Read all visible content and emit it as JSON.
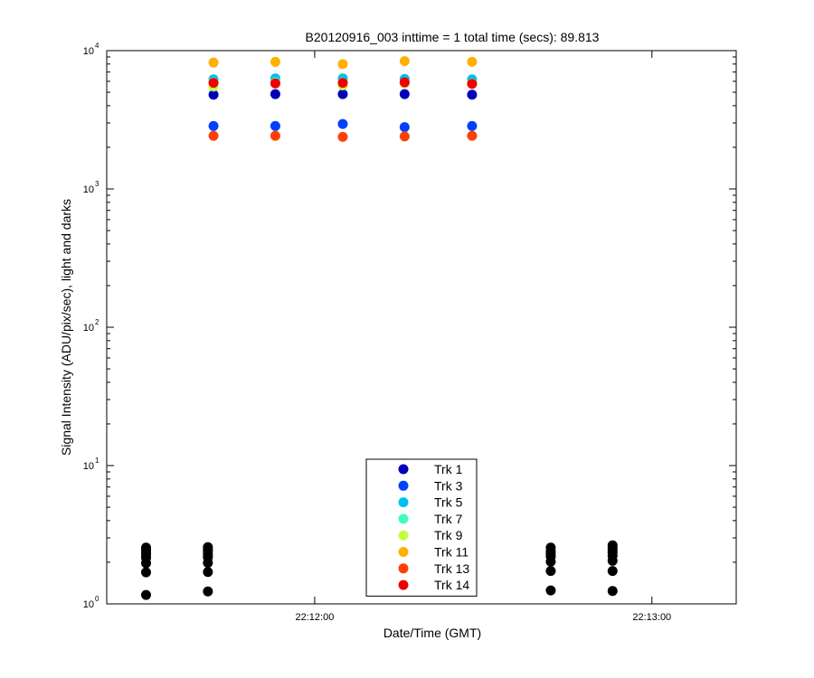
{
  "chart_data": {
    "type": "scatter",
    "title": "B20120916_003 inttime = 1 total time (secs): 89.813",
    "xlabel": "Date/Time (GMT)",
    "ylabel": "Signal Intensity (ADU/pix/sec), light and darks",
    "y_scale": "log",
    "ylim": [
      1,
      10000
    ],
    "y_ticks": [
      {
        "value": 1,
        "base": "10",
        "exp": "0"
      },
      {
        "value": 10,
        "base": "10",
        "exp": "1"
      },
      {
        "value": 100,
        "base": "10",
        "exp": "2"
      },
      {
        "value": 1000,
        "base": "10",
        "exp": "3"
      },
      {
        "value": 10000,
        "base": "10",
        "exp": "4"
      }
    ],
    "xlim": [
      "22:11:23",
      "22:13:15"
    ],
    "x_ticks": [
      {
        "value": "22:12:00",
        "label": "22:12:00"
      },
      {
        "value": "22:13:00",
        "label": "22:13:00"
      }
    ],
    "grid": false,
    "legend_position": "bottom-center",
    "series": [
      {
        "name": "Trk 1",
        "color": "#0000bb",
        "points": [
          [
            "22:11:42",
            4800
          ],
          [
            "22:11:53",
            4850
          ],
          [
            "22:12:05",
            4850
          ],
          [
            "22:12:16",
            4850
          ],
          [
            "22:12:28",
            4800
          ]
        ]
      },
      {
        "name": "Trk 3",
        "color": "#0040ff",
        "points": [
          [
            "22:11:42",
            2850
          ],
          [
            "22:11:53",
            2850
          ],
          [
            "22:12:05",
            2950
          ],
          [
            "22:12:16",
            2800
          ],
          [
            "22:12:28",
            2850
          ]
        ]
      },
      {
        "name": "Trk 5",
        "color": "#00c0f0",
        "points": [
          [
            "22:11:42",
            6200
          ],
          [
            "22:11:53",
            6300
          ],
          [
            "22:12:05",
            6300
          ],
          [
            "22:12:16",
            6250
          ],
          [
            "22:12:28",
            6200
          ]
        ]
      },
      {
        "name": "Trk 7",
        "color": "#40ffc0",
        "points": [
          [
            "22:11:42",
            5900
          ],
          [
            "22:11:53",
            5900
          ],
          [
            "22:12:05",
            5900
          ],
          [
            "22:12:16",
            5900
          ],
          [
            "22:12:28",
            5800
          ]
        ]
      },
      {
        "name": "Trk 9",
        "color": "#c0ff40",
        "points": [
          [
            "22:11:42",
            5500
          ],
          [
            "22:11:53",
            5800
          ],
          [
            "22:12:05",
            5600
          ],
          [
            "22:12:16",
            5800
          ],
          [
            "22:12:28",
            5750
          ]
        ]
      },
      {
        "name": "Trk 11",
        "color": "#ffb000",
        "points": [
          [
            "22:11:42",
            8200
          ],
          [
            "22:11:53",
            8300
          ],
          [
            "22:12:05",
            8000
          ],
          [
            "22:12:16",
            8400
          ],
          [
            "22:12:28",
            8300
          ]
        ]
      },
      {
        "name": "Trk 13",
        "color": "#ff4000",
        "points": [
          [
            "22:11:42",
            2420
          ],
          [
            "22:11:53",
            2420
          ],
          [
            "22:12:05",
            2380
          ],
          [
            "22:12:16",
            2400
          ],
          [
            "22:12:28",
            2420
          ]
        ]
      },
      {
        "name": "Trk 14",
        "color": "#ee0000",
        "points": [
          [
            "22:11:42",
            5850
          ],
          [
            "22:11:53",
            5800
          ],
          [
            "22:12:05",
            5850
          ],
          [
            "22:12:16",
            5900
          ],
          [
            "22:12:28",
            5750
          ]
        ]
      }
    ],
    "dark_points": {
      "color": "#000000",
      "points": [
        [
          "22:11:30",
          2.55
        ],
        [
          "22:11:30",
          2.45
        ],
        [
          "22:11:30",
          2.35
        ],
        [
          "22:11:30",
          2.25
        ],
        [
          "22:11:30",
          2.15
        ],
        [
          "22:11:30",
          1.97
        ],
        [
          "22:11:30",
          1.69
        ],
        [
          "22:11:30",
          1.16
        ],
        [
          "22:11:41",
          2.57
        ],
        [
          "22:11:41",
          2.47
        ],
        [
          "22:11:41",
          2.38
        ],
        [
          "22:11:41",
          2.28
        ],
        [
          "22:11:41",
          2.17
        ],
        [
          "22:11:41",
          1.98
        ],
        [
          "22:11:41",
          1.7
        ],
        [
          "22:11:41",
          1.23
        ],
        [
          "22:12:42",
          2.55
        ],
        [
          "22:12:42",
          2.4
        ],
        [
          "22:12:42",
          2.3
        ],
        [
          "22:12:42",
          2.2
        ],
        [
          "22:12:42",
          2.02
        ],
        [
          "22:12:42",
          1.73
        ],
        [
          "22:12:42",
          1.25
        ],
        [
          "22:12:53",
          2.65
        ],
        [
          "22:12:53",
          2.55
        ],
        [
          "22:12:53",
          2.45
        ],
        [
          "22:12:53",
          2.35
        ],
        [
          "22:12:53",
          2.23
        ],
        [
          "22:12:53",
          2.05
        ],
        [
          "22:12:53",
          1.73
        ],
        [
          "22:12:53",
          1.24
        ]
      ]
    }
  }
}
